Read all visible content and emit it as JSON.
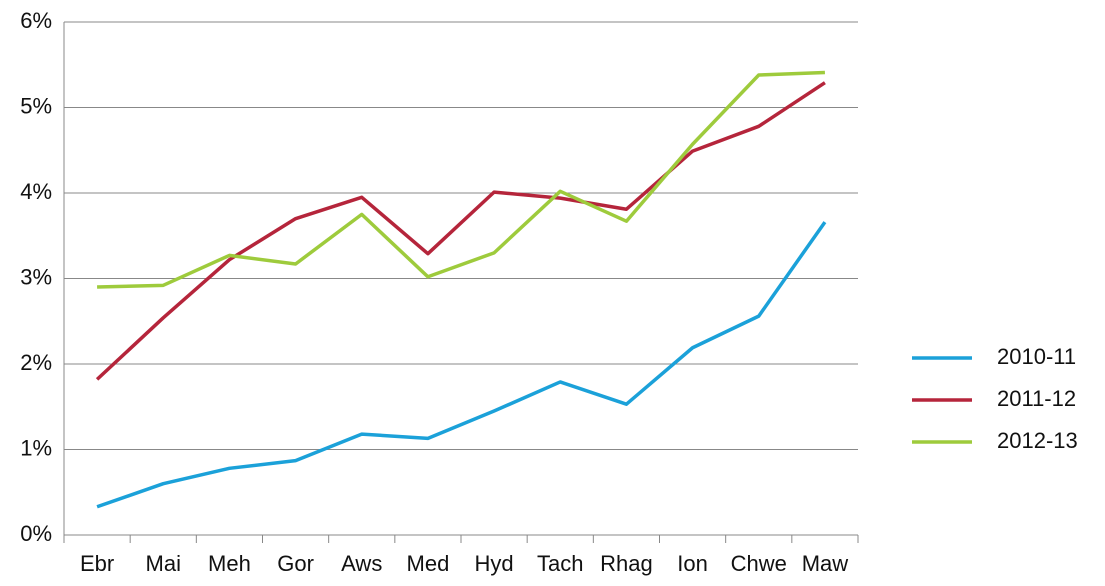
{
  "chart_data": {
    "type": "line",
    "categories": [
      "Ebr",
      "Mai",
      "Meh",
      "Gor",
      "Aws",
      "Med",
      "Hyd",
      "Tach",
      "Rhag",
      "Ion",
      "Chwe",
      "Maw"
    ],
    "series": [
      {
        "name": "2010-11",
        "color": "#1ba1d9",
        "values": [
          0.33,
          0.6,
          0.78,
          0.87,
          1.18,
          1.13,
          1.45,
          1.79,
          1.53,
          2.19,
          2.56,
          3.66
        ]
      },
      {
        "name": "2011-12",
        "color": "#b5253b",
        "values": [
          1.82,
          2.54,
          3.22,
          3.7,
          3.95,
          3.29,
          4.01,
          3.94,
          3.81,
          4.49,
          4.78,
          5.29
        ]
      },
      {
        "name": "2012-13",
        "color": "#9ecb3c",
        "values": [
          2.9,
          2.92,
          3.27,
          3.17,
          3.75,
          3.02,
          3.3,
          4.02,
          3.67,
          4.57,
          5.38,
          5.41
        ]
      }
    ],
    "ylim": [
      0,
      6
    ],
    "yticks": [
      {
        "value": 0,
        "label": "0%"
      },
      {
        "value": 1,
        "label": "1%"
      },
      {
        "value": 2,
        "label": "2%"
      },
      {
        "value": 3,
        "label": "3%"
      },
      {
        "value": 4,
        "label": "4%"
      },
      {
        "value": 5,
        "label": "5%"
      },
      {
        "value": 6,
        "label": "6%"
      }
    ],
    "grid": true,
    "legend": "right"
  }
}
